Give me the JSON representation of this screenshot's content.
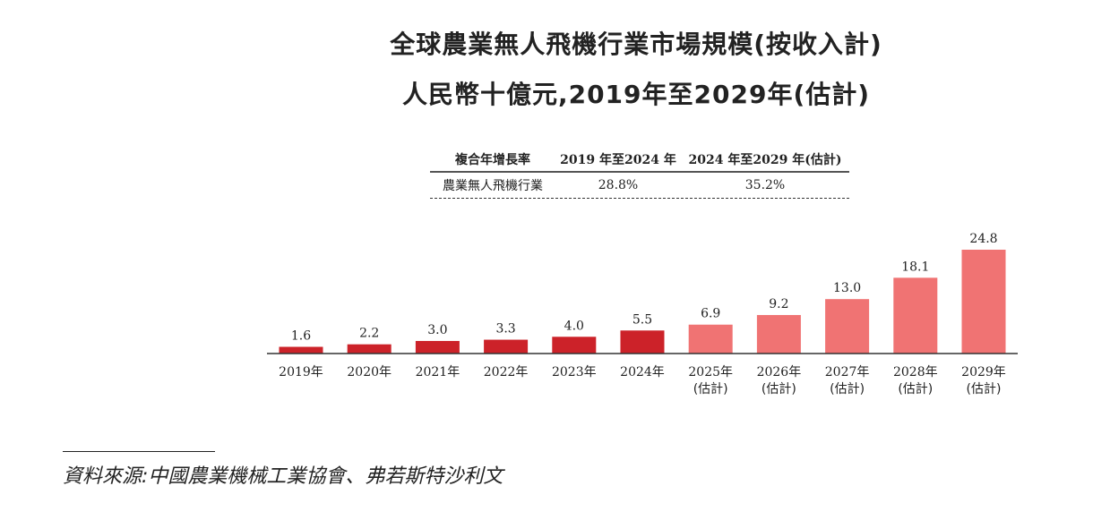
{
  "title_line1": "全球農業無人飛機行業市場規模(按收入計)",
  "title_line2": "人民幣十億元,2019年至2029年(估計)",
  "cagr_table": {
    "headers": [
      "複合年增長率",
      "2019 年至2024 年",
      "2024 年至2029 年(估計)"
    ],
    "row": [
      "農業無人飛機行業",
      "28.8%",
      "35.2%"
    ]
  },
  "chart_data": {
    "type": "bar",
    "title": "全球農業無人飛機行業市場規模(按收入計) 人民幣十億元,2019年至2029年(估計)",
    "xlabel": "",
    "ylabel": "人民幣十億元",
    "categories": [
      "2019年",
      "2020年",
      "2021年",
      "2022年",
      "2023年",
      "2024年",
      "2025年",
      "2026年",
      "2027年",
      "2028年",
      "2029年"
    ],
    "sublabels": [
      "",
      "",
      "",
      "",
      "",
      "",
      "(估計)",
      "(估計)",
      "(估計)",
      "(估計)",
      "(估計)"
    ],
    "values": [
      1.6,
      2.2,
      3.0,
      3.3,
      4.0,
      5.5,
      6.9,
      9.2,
      13.0,
      18.1,
      24.8
    ],
    "value_labels": [
      "1.6",
      "2.2",
      "3.0",
      "3.3",
      "4.0",
      "5.5",
      "6.9",
      "9.2",
      "13.0",
      "18.1",
      "24.8"
    ],
    "estimated": [
      false,
      false,
      false,
      false,
      false,
      false,
      true,
      true,
      true,
      true,
      true
    ],
    "colors": {
      "actual": "#cc2229",
      "estimate": "#f07373"
    },
    "ylim": [
      0,
      25
    ],
    "grid": false
  },
  "source": "資料來源:中國農業機械工業協會、弗若斯特沙利文"
}
